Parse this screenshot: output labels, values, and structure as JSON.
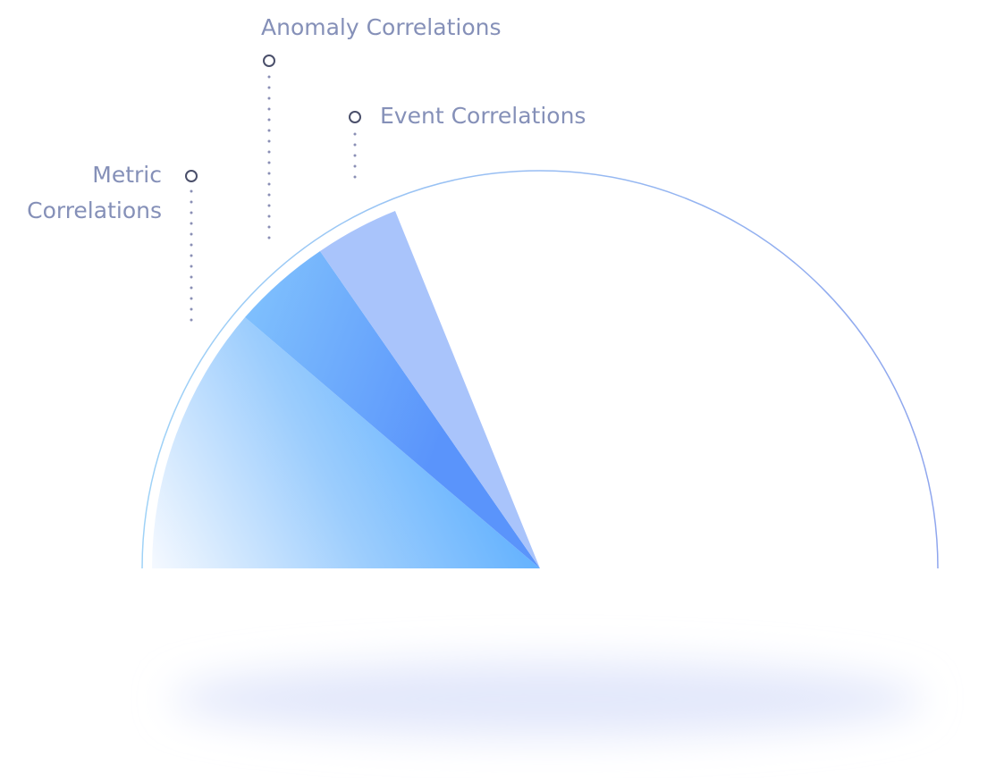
{
  "labels": {
    "metric": [
      "Metric",
      "Correlations"
    ],
    "anomaly": "Anomaly Correlations",
    "event": "Event Correlations"
  }
}
